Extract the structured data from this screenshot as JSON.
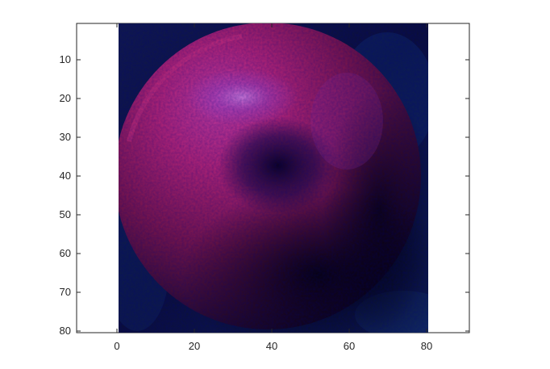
{
  "figure": {
    "x_ticks": [
      "0",
      "20",
      "40",
      "60",
      "80"
    ],
    "y_ticks": [
      "10",
      "20",
      "30",
      "40",
      "50",
      "60",
      "70",
      "80"
    ]
  },
  "chart_data": {
    "type": "image",
    "title": "",
    "xlabel": "",
    "ylabel": "",
    "x_tick_values": [
      0,
      20,
      40,
      60,
      80
    ],
    "y_tick_values": [
      10,
      20,
      30,
      40,
      50,
      60,
      70,
      80
    ],
    "xlim": [
      -10.5,
      90.5
    ],
    "ylim": [
      80.5,
      0.5
    ],
    "y_axis_direction": "reversed",
    "image_extent": {
      "x": [
        0.5,
        80.5
      ],
      "y": [
        0.5,
        80.5
      ]
    },
    "image_subject": "red-purple sphere on dark blue background",
    "colors": {
      "background": "#0a0a2a",
      "sphere": "#b0206a",
      "highlight": "#c060d0",
      "shadow": "#050018"
    }
  }
}
